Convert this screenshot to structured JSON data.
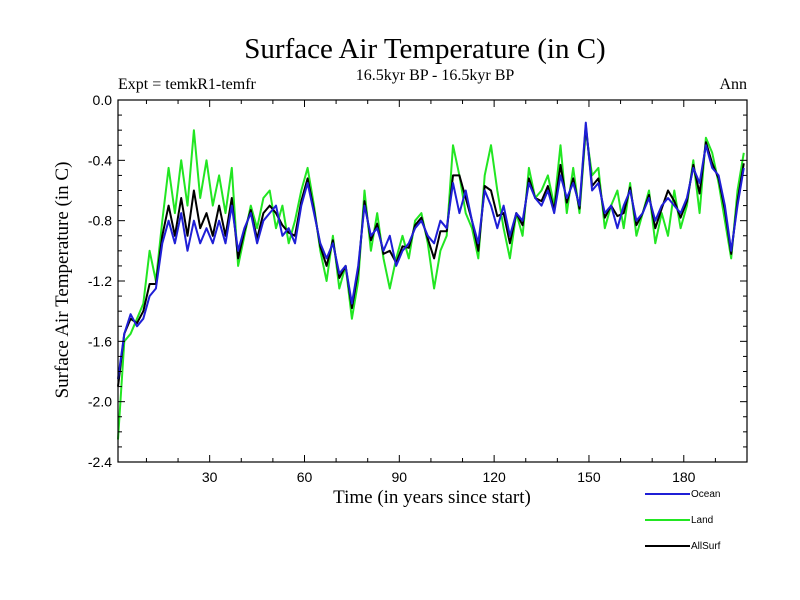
{
  "chart_data": {
    "type": "line",
    "title": "Surface Air Temperature (in C)",
    "subtitle": "16.5kyr BP - 16.5kyr BP",
    "experiment_label": "Expt = temkR1-temfr",
    "season_label": "Ann",
    "xlabel": "Time (in years since start)",
    "ylabel": "Surface Air Temperature (in C)",
    "xlim": [
      1,
      200
    ],
    "ylim": [
      -2.4,
      0.0
    ],
    "xticks": [
      30,
      60,
      90,
      120,
      150,
      180
    ],
    "yticks": [
      0.0,
      -0.4,
      -0.8,
      -1.2,
      -1.6,
      -2.0,
      -2.4
    ],
    "ytick_labels": [
      "0.0",
      "-0.4",
      "-0.8",
      "-1.2",
      "-1.6",
      "-2.0",
      "-2.4"
    ],
    "grid": false,
    "legend_position": "bottom-right, below plot",
    "series": [
      {
        "name": "Ocean",
        "color": "#1f1fd6",
        "points": [
          [
            1,
            -1.85
          ],
          [
            3,
            -1.55
          ],
          [
            5,
            -1.42
          ],
          [
            7,
            -1.5
          ],
          [
            9,
            -1.45
          ],
          [
            11,
            -1.3
          ],
          [
            13,
            -1.25
          ],
          [
            15,
            -0.95
          ],
          [
            17,
            -0.8
          ],
          [
            19,
            -0.95
          ],
          [
            21,
            -0.75
          ],
          [
            23,
            -1.0
          ],
          [
            25,
            -0.8
          ],
          [
            27,
            -0.95
          ],
          [
            29,
            -0.85
          ],
          [
            31,
            -0.95
          ],
          [
            33,
            -0.8
          ],
          [
            35,
            -0.95
          ],
          [
            37,
            -0.7
          ],
          [
            39,
            -1.0
          ],
          [
            41,
            -0.85
          ],
          [
            43,
            -0.75
          ],
          [
            45,
            -0.95
          ],
          [
            47,
            -0.8
          ],
          [
            49,
            -0.75
          ],
          [
            51,
            -0.7
          ],
          [
            53,
            -0.9
          ],
          [
            55,
            -0.85
          ],
          [
            57,
            -0.95
          ],
          [
            59,
            -0.7
          ],
          [
            61,
            -0.55
          ],
          [
            63,
            -0.75
          ],
          [
            65,
            -0.95
          ],
          [
            67,
            -1.05
          ],
          [
            69,
            -0.95
          ],
          [
            71,
            -1.15
          ],
          [
            73,
            -1.1
          ],
          [
            75,
            -1.35
          ],
          [
            77,
            -1.1
          ],
          [
            79,
            -0.7
          ],
          [
            81,
            -0.9
          ],
          [
            83,
            -0.85
          ],
          [
            85,
            -1.0
          ],
          [
            87,
            -0.9
          ],
          [
            89,
            -1.1
          ],
          [
            91,
            -1.0
          ],
          [
            93,
            -0.95
          ],
          [
            95,
            -0.85
          ],
          [
            97,
            -0.8
          ],
          [
            99,
            -0.9
          ],
          [
            101,
            -0.95
          ],
          [
            103,
            -0.8
          ],
          [
            105,
            -0.85
          ],
          [
            107,
            -0.55
          ],
          [
            109,
            -0.75
          ],
          [
            111,
            -0.6
          ],
          [
            113,
            -0.8
          ],
          [
            115,
            -0.95
          ],
          [
            117,
            -0.6
          ],
          [
            119,
            -0.7
          ],
          [
            121,
            -0.85
          ],
          [
            123,
            -0.7
          ],
          [
            125,
            -0.9
          ],
          [
            127,
            -0.75
          ],
          [
            129,
            -0.8
          ],
          [
            131,
            -0.55
          ],
          [
            133,
            -0.65
          ],
          [
            135,
            -0.7
          ],
          [
            137,
            -0.6
          ],
          [
            139,
            -0.75
          ],
          [
            141,
            -0.5
          ],
          [
            143,
            -0.65
          ],
          [
            145,
            -0.55
          ],
          [
            147,
            -0.7
          ],
          [
            149,
            -0.15
          ],
          [
            151,
            -0.6
          ],
          [
            153,
            -0.55
          ],
          [
            155,
            -0.75
          ],
          [
            157,
            -0.7
          ],
          [
            159,
            -0.85
          ],
          [
            161,
            -0.7
          ],
          [
            163,
            -0.6
          ],
          [
            165,
            -0.8
          ],
          [
            167,
            -0.75
          ],
          [
            169,
            -0.65
          ],
          [
            171,
            -0.8
          ],
          [
            173,
            -0.7
          ],
          [
            175,
            -0.65
          ],
          [
            177,
            -0.7
          ],
          [
            179,
            -0.75
          ],
          [
            181,
            -0.65
          ],
          [
            183,
            -0.45
          ],
          [
            185,
            -0.55
          ],
          [
            187,
            -0.3
          ],
          [
            189,
            -0.45
          ],
          [
            191,
            -0.5
          ],
          [
            193,
            -0.7
          ],
          [
            195,
            -1.0
          ],
          [
            197,
            -0.7
          ],
          [
            199,
            -0.45
          ]
        ]
      },
      {
        "name": "Land",
        "color": "#22e622",
        "points": [
          [
            1,
            -2.25
          ],
          [
            3,
            -1.6
          ],
          [
            5,
            -1.55
          ],
          [
            7,
            -1.45
          ],
          [
            9,
            -1.35
          ],
          [
            11,
            -1.0
          ],
          [
            13,
            -1.2
          ],
          [
            15,
            -0.8
          ],
          [
            17,
            -0.45
          ],
          [
            19,
            -0.75
          ],
          [
            21,
            -0.4
          ],
          [
            23,
            -0.7
          ],
          [
            25,
            -0.2
          ],
          [
            27,
            -0.65
          ],
          [
            29,
            -0.4
          ],
          [
            31,
            -0.7
          ],
          [
            33,
            -0.5
          ],
          [
            35,
            -0.75
          ],
          [
            37,
            -0.45
          ],
          [
            39,
            -1.1
          ],
          [
            41,
            -0.9
          ],
          [
            43,
            -0.7
          ],
          [
            45,
            -0.85
          ],
          [
            47,
            -0.65
          ],
          [
            49,
            -0.6
          ],
          [
            51,
            -0.85
          ],
          [
            53,
            -0.7
          ],
          [
            55,
            -0.95
          ],
          [
            57,
            -0.8
          ],
          [
            59,
            -0.6
          ],
          [
            61,
            -0.45
          ],
          [
            63,
            -0.7
          ],
          [
            65,
            -1.0
          ],
          [
            67,
            -1.2
          ],
          [
            69,
            -0.9
          ],
          [
            71,
            -1.25
          ],
          [
            73,
            -1.1
          ],
          [
            75,
            -1.45
          ],
          [
            77,
            -1.2
          ],
          [
            79,
            -0.6
          ],
          [
            81,
            -1.0
          ],
          [
            83,
            -0.75
          ],
          [
            85,
            -1.05
          ],
          [
            87,
            -1.25
          ],
          [
            89,
            -1.05
          ],
          [
            91,
            -0.9
          ],
          [
            93,
            -1.05
          ],
          [
            95,
            -0.8
          ],
          [
            97,
            -0.75
          ],
          [
            99,
            -0.95
          ],
          [
            101,
            -1.25
          ],
          [
            103,
            -1.0
          ],
          [
            105,
            -0.9
          ],
          [
            107,
            -0.3
          ],
          [
            109,
            -0.5
          ],
          [
            111,
            -0.75
          ],
          [
            113,
            -0.85
          ],
          [
            115,
            -1.05
          ],
          [
            117,
            -0.5
          ],
          [
            119,
            -0.3
          ],
          [
            121,
            -0.6
          ],
          [
            123,
            -0.85
          ],
          [
            125,
            -1.05
          ],
          [
            127,
            -0.75
          ],
          [
            129,
            -0.9
          ],
          [
            131,
            -0.45
          ],
          [
            133,
            -0.65
          ],
          [
            135,
            -0.6
          ],
          [
            137,
            -0.5
          ],
          [
            139,
            -0.7
          ],
          [
            141,
            -0.3
          ],
          [
            143,
            -0.75
          ],
          [
            145,
            -0.45
          ],
          [
            147,
            -0.75
          ],
          [
            149,
            -0.2
          ],
          [
            151,
            -0.5
          ],
          [
            153,
            -0.45
          ],
          [
            155,
            -0.85
          ],
          [
            157,
            -0.7
          ],
          [
            159,
            -0.6
          ],
          [
            161,
            -0.85
          ],
          [
            163,
            -0.55
          ],
          [
            165,
            -0.9
          ],
          [
            167,
            -0.75
          ],
          [
            169,
            -0.6
          ],
          [
            171,
            -0.95
          ],
          [
            173,
            -0.75
          ],
          [
            175,
            -0.9
          ],
          [
            177,
            -0.6
          ],
          [
            179,
            -0.85
          ],
          [
            181,
            -0.7
          ],
          [
            183,
            -0.4
          ],
          [
            185,
            -0.75
          ],
          [
            187,
            -0.25
          ],
          [
            189,
            -0.35
          ],
          [
            191,
            -0.55
          ],
          [
            193,
            -0.8
          ],
          [
            195,
            -1.05
          ],
          [
            197,
            -0.6
          ],
          [
            199,
            -0.35
          ]
        ]
      },
      {
        "name": "AllSurf",
        "color": "#000000",
        "points": [
          [
            1,
            -1.9
          ],
          [
            3,
            -1.55
          ],
          [
            5,
            -1.45
          ],
          [
            7,
            -1.48
          ],
          [
            9,
            -1.4
          ],
          [
            11,
            -1.22
          ],
          [
            13,
            -1.22
          ],
          [
            15,
            -0.9
          ],
          [
            17,
            -0.7
          ],
          [
            19,
            -0.9
          ],
          [
            21,
            -0.65
          ],
          [
            23,
            -0.9
          ],
          [
            25,
            -0.6
          ],
          [
            27,
            -0.85
          ],
          [
            29,
            -0.75
          ],
          [
            31,
            -0.9
          ],
          [
            33,
            -0.7
          ],
          [
            35,
            -0.9
          ],
          [
            37,
            -0.65
          ],
          [
            39,
            -1.05
          ],
          [
            41,
            -0.87
          ],
          [
            43,
            -0.73
          ],
          [
            45,
            -0.92
          ],
          [
            47,
            -0.75
          ],
          [
            49,
            -0.7
          ],
          [
            51,
            -0.75
          ],
          [
            53,
            -0.83
          ],
          [
            55,
            -0.88
          ],
          [
            57,
            -0.9
          ],
          [
            59,
            -0.67
          ],
          [
            61,
            -0.52
          ],
          [
            63,
            -0.73
          ],
          [
            65,
            -0.97
          ],
          [
            67,
            -1.1
          ],
          [
            69,
            -0.93
          ],
          [
            71,
            -1.18
          ],
          [
            73,
            -1.1
          ],
          [
            75,
            -1.38
          ],
          [
            77,
            -1.13
          ],
          [
            79,
            -0.67
          ],
          [
            81,
            -0.93
          ],
          [
            83,
            -0.82
          ],
          [
            85,
            -1.02
          ],
          [
            87,
            -1.0
          ],
          [
            89,
            -1.08
          ],
          [
            91,
            -0.97
          ],
          [
            93,
            -0.98
          ],
          [
            95,
            -0.83
          ],
          [
            97,
            -0.78
          ],
          [
            99,
            -0.92
          ],
          [
            101,
            -1.05
          ],
          [
            103,
            -0.87
          ],
          [
            105,
            -0.87
          ],
          [
            107,
            -0.5
          ],
          [
            109,
            -0.5
          ],
          [
            111,
            -0.65
          ],
          [
            113,
            -0.8
          ],
          [
            115,
            -1.0
          ],
          [
            117,
            -0.57
          ],
          [
            119,
            -0.6
          ],
          [
            121,
            -0.77
          ],
          [
            123,
            -0.75
          ],
          [
            125,
            -0.95
          ],
          [
            127,
            -0.75
          ],
          [
            129,
            -0.83
          ],
          [
            131,
            -0.52
          ],
          [
            133,
            -0.65
          ],
          [
            135,
            -0.67
          ],
          [
            137,
            -0.57
          ],
          [
            139,
            -0.73
          ],
          [
            141,
            -0.43
          ],
          [
            143,
            -0.68
          ],
          [
            145,
            -0.52
          ],
          [
            147,
            -0.72
          ],
          [
            149,
            -0.17
          ],
          [
            151,
            -0.57
          ],
          [
            153,
            -0.52
          ],
          [
            155,
            -0.78
          ],
          [
            157,
            -0.7
          ],
          [
            159,
            -0.77
          ],
          [
            161,
            -0.75
          ],
          [
            163,
            -0.58
          ],
          [
            165,
            -0.83
          ],
          [
            167,
            -0.75
          ],
          [
            169,
            -0.63
          ],
          [
            171,
            -0.85
          ],
          [
            173,
            -0.72
          ],
          [
            175,
            -0.6
          ],
          [
            177,
            -0.67
          ],
          [
            179,
            -0.78
          ],
          [
            181,
            -0.67
          ],
          [
            183,
            -0.43
          ],
          [
            185,
            -0.62
          ],
          [
            187,
            -0.28
          ],
          [
            189,
            -0.42
          ],
          [
            191,
            -0.52
          ],
          [
            193,
            -0.73
          ],
          [
            195,
            -1.02
          ],
          [
            197,
            -0.67
          ],
          [
            199,
            -0.42
          ]
        ]
      }
    ]
  }
}
